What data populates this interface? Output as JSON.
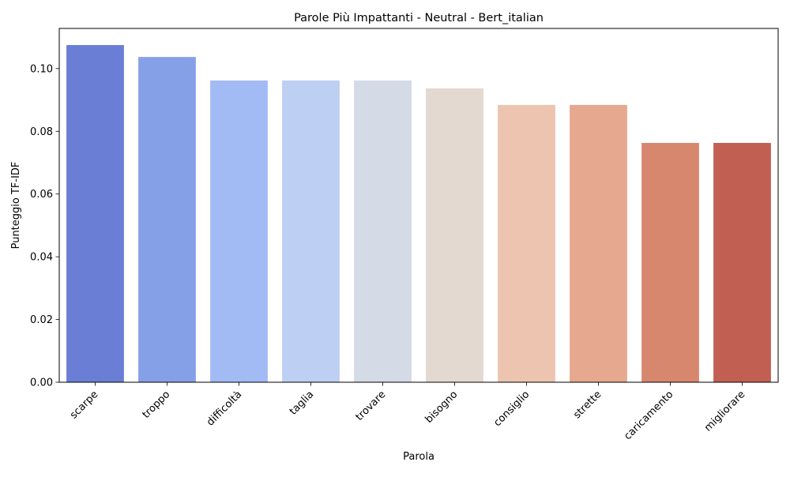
{
  "chart_data": {
    "type": "bar",
    "title": "Parole Più Impattanti - Neutral - Bert_italian",
    "xlabel": "Parola",
    "ylabel": "Punteggio TF-IDF",
    "categories": [
      "scarpe",
      "troppo",
      "difficoltà",
      "taglia",
      "trovare",
      "bisogno",
      "consiglio",
      "strette",
      "caricamento",
      "migliorare"
    ],
    "values": [
      0.1075,
      0.1037,
      0.0962,
      0.0962,
      0.0962,
      0.0937,
      0.0884,
      0.0884,
      0.0763,
      0.0763
    ],
    "colors": [
      "#6a7ed5",
      "#86a0e8",
      "#a3bbf5",
      "#bdcff2",
      "#d4dae6",
      "#e4d9d1",
      "#ecc4b0",
      "#e6a88f",
      "#d8876f",
      "#c15f53"
    ],
    "ylim": [
      0,
      0.1128
    ],
    "yticks": [
      0.0,
      0.02,
      0.04,
      0.06,
      0.08,
      0.1
    ],
    "ytick_labels": [
      "0.00",
      "0.02",
      "0.04",
      "0.06",
      "0.08",
      "0.10"
    ],
    "grid": false,
    "legend": "none"
  }
}
